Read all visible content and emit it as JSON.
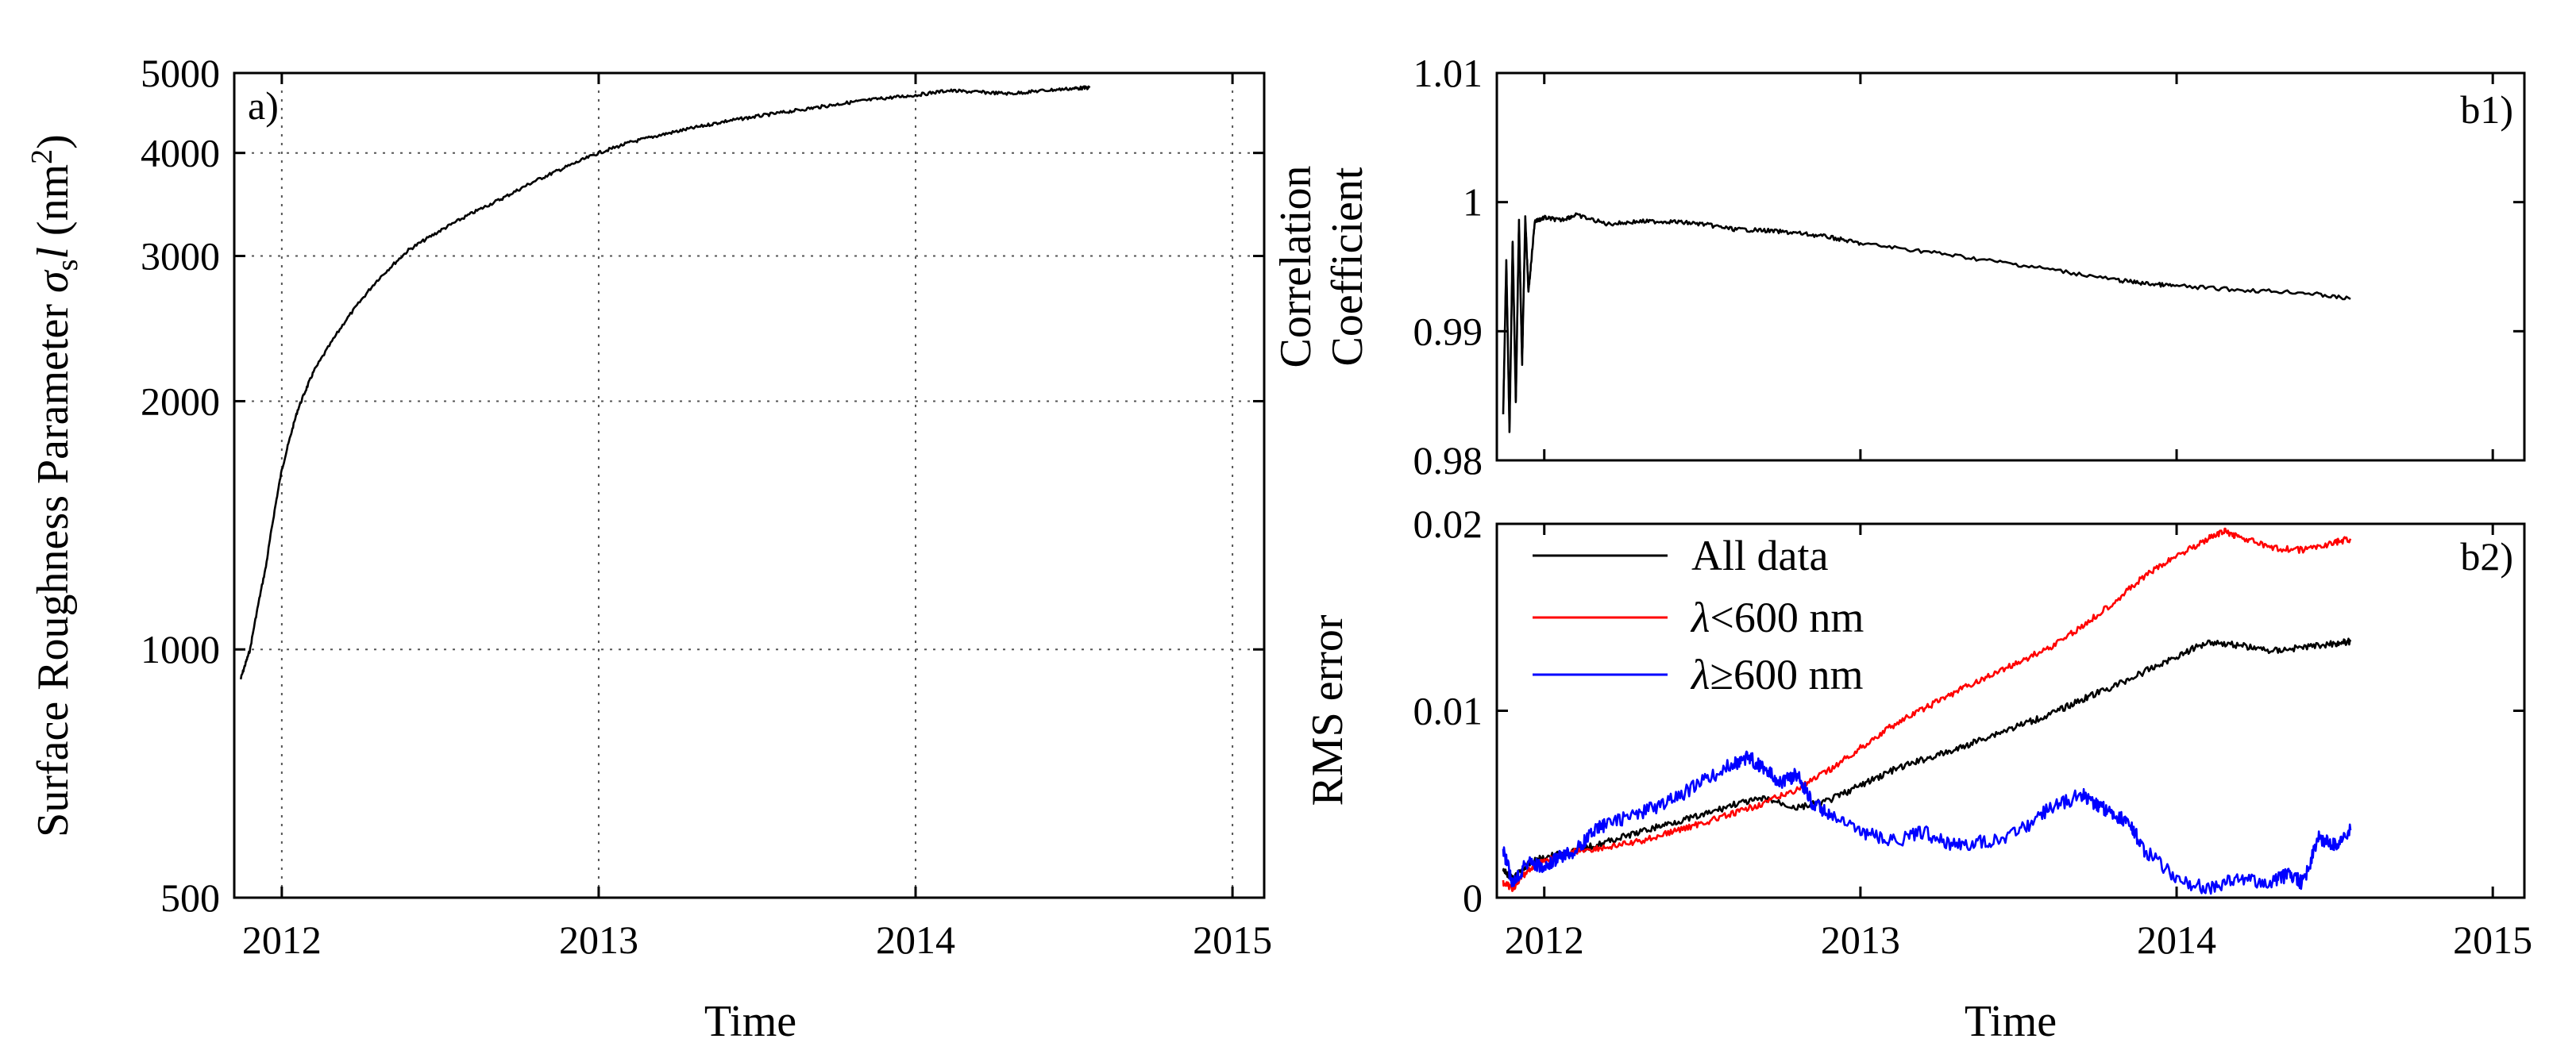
{
  "chart_data": [
    {
      "id": "a",
      "type": "line",
      "panel_label": "a)",
      "xlabel": "Time",
      "ylabel_main": "Surface Roughness Parameter ",
      "ylabel_symbol": "σ",
      "ylabel_sub": "s",
      "ylabel_l": "l",
      "ylabel_unit_open": " (nm",
      "ylabel_sup": "2",
      "ylabel_unit_close": ")",
      "xlim": [
        2011.85,
        2015.1
      ],
      "ylim": [
        500,
        5000
      ],
      "xticks": [
        2012,
        2013,
        2014,
        2015
      ],
      "xticklabels": [
        "2012",
        "2013",
        "2014",
        "2015"
      ],
      "yticks": [
        500,
        1000,
        2000,
        3000,
        4000,
        5000
      ],
      "yticklabels": [
        "500",
        "1000",
        "2000",
        "3000",
        "4000",
        "5000"
      ],
      "grid": true,
      "series": [
        {
          "color": "#000000",
          "x": [
            2011.87,
            2011.9,
            2011.95,
            2012.0,
            2012.05,
            2012.1,
            2012.2,
            2012.3,
            2012.4,
            2012.5,
            2012.6,
            2012.7,
            2012.8,
            2012.9,
            2013.0,
            2013.1,
            2013.2,
            2013.3,
            2013.4,
            2013.5,
            2013.6,
            2013.7,
            2013.8,
            2013.9,
            2014.0,
            2014.1,
            2014.2,
            2014.3,
            2014.4,
            2014.5,
            2014.55
          ],
          "y": [
            920,
            1000,
            1260,
            1650,
            1950,
            2170,
            2500,
            2800,
            3050,
            3220,
            3380,
            3530,
            3700,
            3850,
            4000,
            4120,
            4210,
            4290,
            4370,
            4430,
            4490,
            4550,
            4610,
            4660,
            4700,
            4760,
            4740,
            4720,
            4760,
            4790,
            4800
          ]
        }
      ]
    },
    {
      "id": "b1",
      "type": "line",
      "panel_label": "b1)",
      "ylabel_line1": "Correlation",
      "ylabel_line2": "Coefficient",
      "xlim": [
        2011.85,
        2015.1
      ],
      "ylim": [
        0.98,
        1.01
      ],
      "xticks": [
        2012,
        2013,
        2014,
        2015
      ],
      "yticks": [
        0.98,
        0.99,
        1.0,
        1.01
      ],
      "yticklabels": [
        "0.98",
        "0.99",
        "1",
        "1.01"
      ],
      "grid": false,
      "series": [
        {
          "color": "#000000",
          "x": [
            2011.87,
            2011.88,
            2011.89,
            2011.9,
            2011.91,
            2011.92,
            2011.93,
            2011.94,
            2011.95,
            2011.97,
            2012.0,
            2012.05,
            2012.1,
            2012.2,
            2012.3,
            2012.4,
            2012.5,
            2012.6,
            2012.7,
            2012.8,
            2012.9,
            2013.0,
            2013.2,
            2013.4,
            2013.6,
            2013.8,
            2013.9,
            2014.0,
            2014.2,
            2014.4,
            2014.55
          ],
          "y": [
            0.9835,
            0.9955,
            0.9822,
            0.997,
            0.9845,
            0.9985,
            0.9875,
            0.9988,
            0.993,
            0.9985,
            0.9988,
            0.9986,
            0.999,
            0.9983,
            0.9985,
            0.9985,
            0.9983,
            0.9979,
            0.9978,
            0.9976,
            0.9973,
            0.9968,
            0.9962,
            0.9955,
            0.9948,
            0.994,
            0.9937,
            0.9935,
            0.9932,
            0.993,
            0.9925
          ]
        }
      ]
    },
    {
      "id": "b2",
      "type": "line",
      "panel_label": "b2)",
      "xlabel": "Time",
      "ylabel": "RMS error",
      "xlim": [
        2011.85,
        2015.1
      ],
      "ylim": [
        0,
        0.02
      ],
      "xticks": [
        2012,
        2013,
        2014,
        2015
      ],
      "xticklabels": [
        "2012",
        "2013",
        "2014",
        "2015"
      ],
      "yticks": [
        0,
        0.01,
        0.02
      ],
      "yticklabels": [
        "0",
        "0.01",
        "0.02"
      ],
      "grid": false,
      "legend_position": "top-left",
      "series": [
        {
          "name": "All data",
          "color": "#000000",
          "x": [
            2011.87,
            2011.9,
            2011.95,
            2012.0,
            2012.1,
            2012.2,
            2012.3,
            2012.4,
            2012.5,
            2012.6,
            2012.7,
            2012.8,
            2012.9,
            2013.0,
            2013.1,
            2013.2,
            2013.3,
            2013.4,
            2013.5,
            2013.6,
            2013.7,
            2013.8,
            2013.9,
            2014.0,
            2014.1,
            2014.2,
            2014.3,
            2014.4,
            2014.5,
            2014.55
          ],
          "y": [
            0.0015,
            0.001,
            0.0018,
            0.0022,
            0.0025,
            0.003,
            0.0035,
            0.004,
            0.0044,
            0.005,
            0.0053,
            0.0048,
            0.0052,
            0.006,
            0.0068,
            0.0074,
            0.0079,
            0.0086,
            0.0092,
            0.0098,
            0.0106,
            0.0113,
            0.0121,
            0.0129,
            0.0137,
            0.0135,
            0.0132,
            0.0134,
            0.0136,
            0.0137
          ]
        },
        {
          "name_symbol": "λ",
          "name_rest": "<600 nm",
          "color": "#ff0000",
          "x": [
            2011.87,
            2011.9,
            2011.95,
            2012.0,
            2012.1,
            2012.2,
            2012.3,
            2012.4,
            2012.5,
            2012.6,
            2012.7,
            2012.8,
            2012.9,
            2013.0,
            2013.1,
            2013.2,
            2013.3,
            2013.4,
            2013.5,
            2013.6,
            2013.7,
            2013.8,
            2013.9,
            2014.0,
            2014.1,
            2014.15,
            2014.2,
            2014.3,
            2014.4,
            2014.5,
            2014.55
          ],
          "y": [
            0.0008,
            0.0005,
            0.0015,
            0.002,
            0.0025,
            0.0027,
            0.003,
            0.0035,
            0.004,
            0.0045,
            0.0051,
            0.0058,
            0.0068,
            0.008,
            0.0092,
            0.0101,
            0.011,
            0.0118,
            0.0126,
            0.0134,
            0.0145,
            0.0158,
            0.0172,
            0.0183,
            0.0192,
            0.0196,
            0.0193,
            0.0187,
            0.0186,
            0.019,
            0.0192
          ]
        },
        {
          "name_symbol": "λ",
          "name_rest": "≥600 nm",
          "color": "#0000ff",
          "x": [
            2011.87,
            2011.9,
            2011.95,
            2012.0,
            2012.05,
            2012.1,
            2012.15,
            2012.2,
            2012.3,
            2012.4,
            2012.5,
            2012.6,
            2012.65,
            2012.7,
            2012.75,
            2012.8,
            2012.85,
            2012.9,
            2013.0,
            2013.1,
            2013.2,
            2013.3,
            2013.4,
            2013.5,
            2013.6,
            2013.7,
            2013.75,
            2013.8,
            2013.85,
            2013.9,
            2014.0,
            2014.1,
            2014.2,
            2014.3,
            2014.35,
            2014.4,
            2014.45,
            2014.5,
            2014.55
          ],
          "y": [
            0.0025,
            0.0008,
            0.002,
            0.0015,
            0.0022,
            0.0025,
            0.0035,
            0.004,
            0.0045,
            0.0052,
            0.0062,
            0.0072,
            0.0075,
            0.0068,
            0.0062,
            0.0066,
            0.005,
            0.0045,
            0.0035,
            0.003,
            0.0035,
            0.0028,
            0.003,
            0.0035,
            0.0048,
            0.0055,
            0.005,
            0.0045,
            0.004,
            0.0025,
            0.001,
            0.0005,
            0.001,
            0.0008,
            0.0012,
            0.0008,
            0.0032,
            0.0028,
            0.0036
          ]
        }
      ]
    }
  ]
}
